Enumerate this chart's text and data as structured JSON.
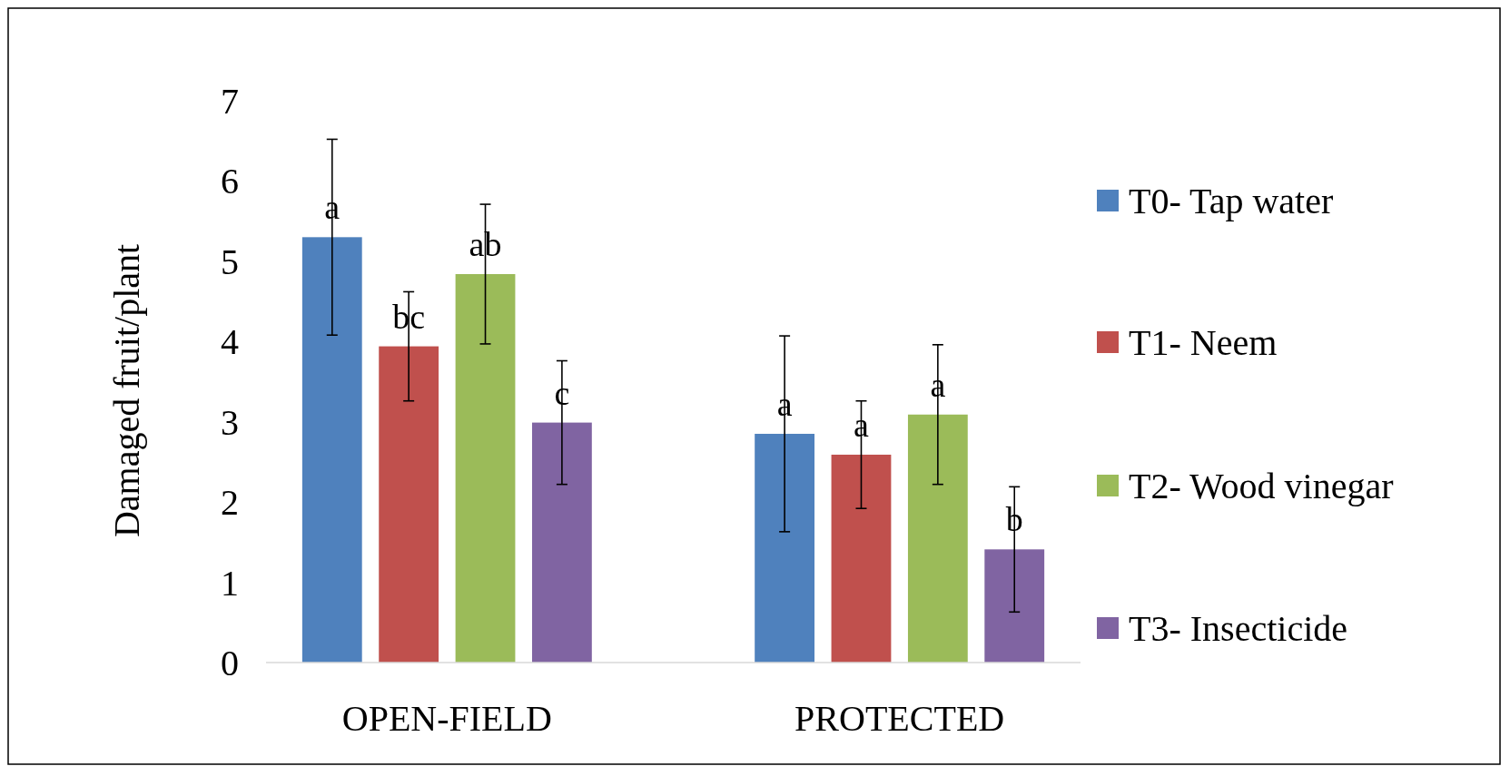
{
  "chart_data": {
    "type": "bar",
    "ylabel": "Damaged fruit/plant",
    "categories": [
      "OPEN-FIELD",
      "PROTECTED"
    ],
    "series": [
      {
        "name": "T0- Tap water",
        "color": "#4f81bd",
        "values": [
          5.3,
          2.85
        ],
        "errors": [
          1.22,
          1.22
        ],
        "value_labels": [
          "a",
          "a"
        ]
      },
      {
        "name": "T1- Neem",
        "color": "#c0504d",
        "values": [
          3.94,
          2.59
        ],
        "errors": [
          0.68,
          0.67
        ],
        "value_labels": [
          "bc",
          "a"
        ]
      },
      {
        "name": "T2- Wood vinegar",
        "color": "#9bbb59",
        "values": [
          4.84,
          3.09
        ],
        "errors": [
          0.87,
          0.87
        ],
        "value_labels": [
          "ab",
          "a"
        ]
      },
      {
        "name": "T3- Insecticide",
        "color": "#8064a2",
        "values": [
          2.99,
          1.41
        ],
        "errors": [
          0.77,
          0.78
        ],
        "value_labels": [
          "c",
          "b"
        ]
      }
    ],
    "ylim": [
      0,
      7
    ],
    "yticks": [
      0,
      1,
      2,
      3,
      4,
      5,
      6,
      7
    ],
    "grid": false,
    "legend": "right"
  }
}
